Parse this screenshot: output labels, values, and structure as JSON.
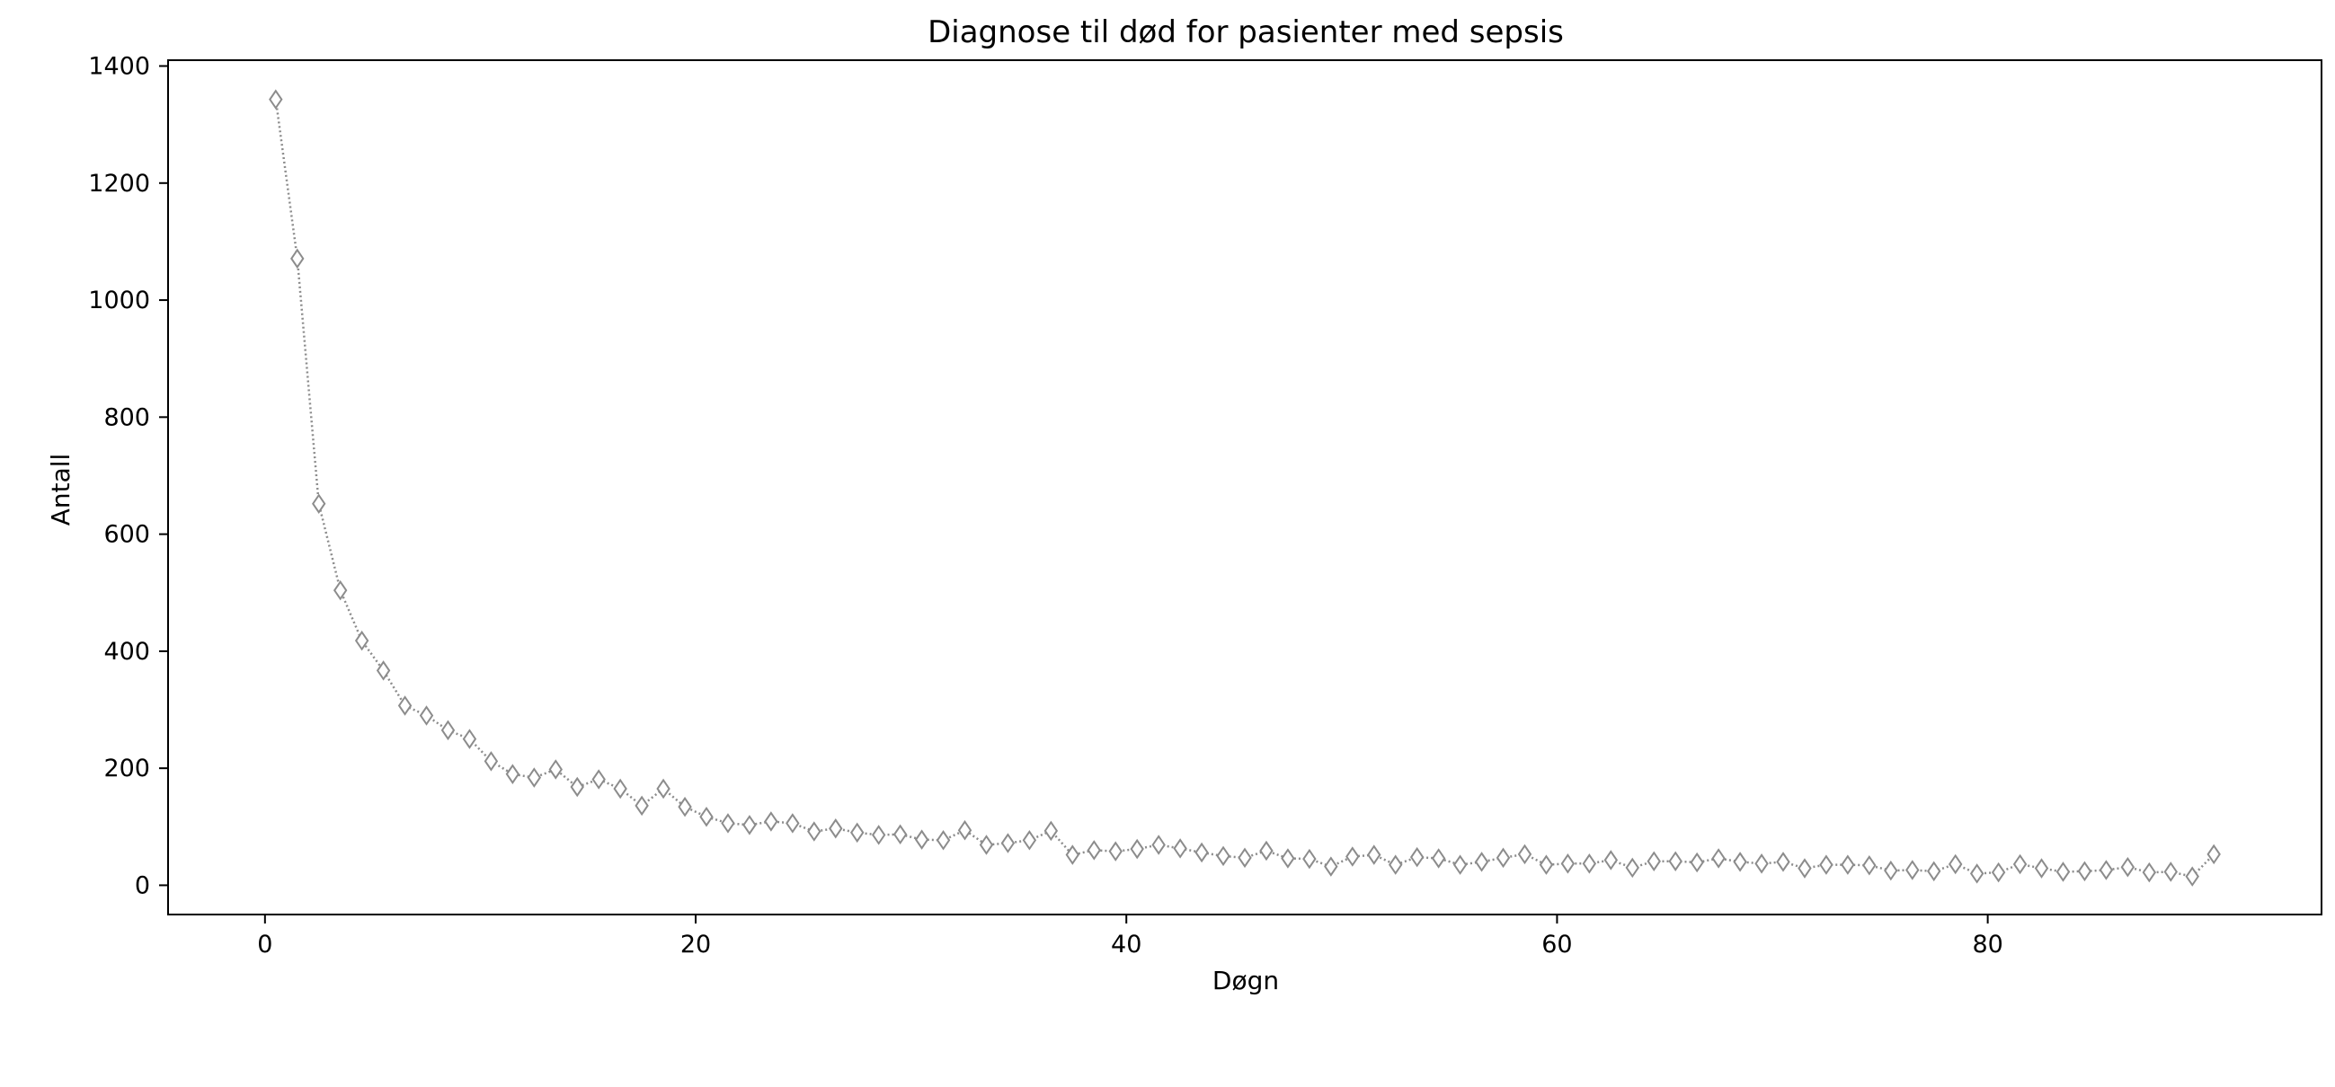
{
  "chart_data": {
    "type": "line",
    "title": "Diagnose til død for pasienter med sepsis",
    "xlabel": "Døgn",
    "ylabel": "Antall",
    "xlim": [
      -4.5,
      95.5
    ],
    "ylim": [
      -50,
      1410
    ],
    "xticks": [
      0,
      20,
      40,
      60,
      80
    ],
    "yticks": [
      0,
      200,
      400,
      600,
      800,
      1000,
      1200,
      1400
    ],
    "grid": false,
    "marker": "diamond-open",
    "line_style": "dotted",
    "colors": {
      "series": "#8c8c8c",
      "axes": "#000000",
      "background": "#ffffff"
    },
    "series": [
      {
        "x": [
          0.5,
          1.5,
          2.5,
          3.5,
          4.5,
          5.5,
          6.5,
          7.5,
          8.5,
          9.5,
          10.5,
          11.5,
          12.5,
          13.5,
          14.5,
          15.5,
          16.5,
          17.5,
          18.5,
          19.5,
          20.5,
          21.5,
          22.5,
          23.5,
          24.5,
          25.5,
          26.5,
          27.5,
          28.5,
          29.5,
          30.5,
          31.5,
          32.5,
          33.5,
          34.5,
          35.5,
          36.5,
          37.5,
          38.5,
          39.5,
          40.5,
          41.5,
          42.5,
          43.5,
          44.5,
          45.5,
          46.5,
          47.5,
          48.5,
          49.5,
          50.5,
          51.5,
          52.5,
          53.5,
          54.5,
          55.5,
          56.5,
          57.5,
          58.5,
          59.5,
          60.5,
          61.5,
          62.5,
          63.5,
          64.5,
          65.5,
          66.5,
          67.5,
          68.5,
          69.5,
          70.5,
          71.5,
          72.5,
          73.5,
          74.5,
          75.5,
          76.5,
          77.5,
          78.5,
          79.5,
          80.5,
          81.5,
          82.5,
          83.5,
          84.5,
          85.5,
          86.5,
          87.5,
          88.5,
          89.5,
          90.5
        ],
        "values": [
          1343,
          1071,
          652,
          504,
          418,
          367,
          307,
          290,
          265,
          250,
          212,
          190,
          184,
          198,
          168,
          181,
          165,
          136,
          165,
          134,
          117,
          106,
          103,
          109,
          106,
          92,
          97,
          90,
          86,
          87,
          78,
          77,
          94,
          69,
          72,
          77,
          93,
          52,
          60,
          58,
          62,
          69,
          63,
          56,
          50,
          47,
          59,
          46,
          45,
          32,
          49,
          52,
          35,
          48,
          46,
          35,
          40,
          47,
          53,
          35,
          37,
          37,
          43,
          30,
          41,
          41,
          39,
          46,
          40,
          37,
          40,
          29,
          35,
          35,
          34,
          25,
          26,
          24,
          36,
          20,
          22,
          36,
          29,
          23,
          24,
          26,
          31,
          22,
          23,
          15,
          53
        ]
      }
    ]
  }
}
